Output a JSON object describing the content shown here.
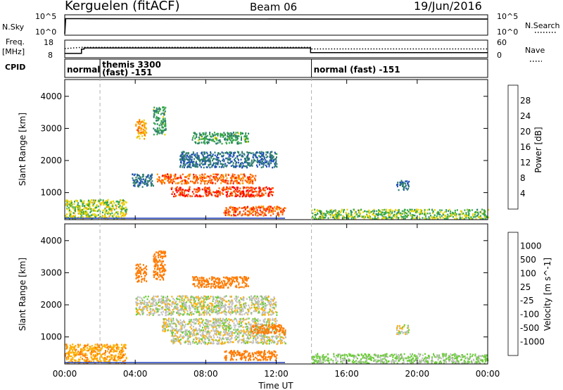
{
  "header": {
    "station": "Kerguelen (fitACF)",
    "beam": "Beam 06",
    "date": "19/Jun/2016"
  },
  "panel_labels": {
    "nsky": "N.Sky",
    "nsearch": "N.Search",
    "freq_line1": "Freq.",
    "freq_line2": "[MHz]",
    "nave": "Nave",
    "cpid": "CPID",
    "nsky_tick_top": "10^5",
    "nsky_tick_bot": "10^0",
    "freq_tick_top": "18",
    "freq_tick_bot": "8",
    "nave_tick_top": "60",
    "nave_tick_bot": "0"
  },
  "cpid_segments": [
    {
      "start_hr": 0.0,
      "line1": "normal",
      "line2": ""
    },
    {
      "start_hr": 2.0,
      "line1": "themis 3300",
      "line2": "(fast) -151"
    },
    {
      "start_hr": 14.0,
      "line1": "normal (fast) -151",
      "line2": ""
    }
  ],
  "colors": {
    "power": [
      "#0000ff",
      "#1f4fb4",
      "#2e7d6e",
      "#35a84a",
      "#e6d300",
      "#ff9900",
      "#ff5a00",
      "#ff0000"
    ],
    "velocity": [
      "#1f3fbf",
      "#2f6fbf",
      "#2e8b57",
      "#6ccc3a",
      "#c0c0c0",
      "#ffb000",
      "#ff7a00",
      "#ff2a00",
      "#ff0000"
    ]
  },
  "chart_data": [
    {
      "type": "line",
      "name": "N.Sky / N.Search",
      "x_unit": "hours UT",
      "ylim": [
        1,
        100000
      ],
      "log_scale": true,
      "series": [
        {
          "name": "N.Sky",
          "style": "solid",
          "x": [
            0.0,
            0.05,
            1.0,
            14.0,
            24.0
          ],
          "values": [
            1,
            20000,
            20000,
            15000,
            15000
          ]
        },
        {
          "name": "N.Search",
          "style": "dotted",
          "x": [],
          "values": []
        }
      ]
    },
    {
      "type": "line",
      "name": "Freq / Nave",
      "x_unit": "hours UT",
      "ylim": [
        8,
        18
      ],
      "series": [
        {
          "name": "Freq.",
          "style": "solid",
          "x": [
            0.0,
            0.95,
            0.95,
            1.1,
            1.1,
            13.95,
            13.95,
            24.0
          ],
          "values": [
            10.2,
            10.2,
            12.9,
            12.9,
            13.6,
            13.6,
            10.7,
            10.7
          ]
        },
        {
          "name": "Nave",
          "style": "dotted",
          "x": [
            0.0,
            1.0,
            13.95,
            14.0,
            24.0
          ],
          "values": [
            13.2,
            14.0,
            14.0,
            13.0,
            13.0
          ]
        }
      ]
    },
    {
      "type": "heatmap",
      "title": "Power",
      "ylabel": "Slant Range [km]",
      "colorbar_label": "Power [dB]",
      "colorbar_ticks": [
        "4",
        "8",
        "12",
        "16",
        "20",
        "24",
        "28"
      ],
      "clim": [
        0,
        30
      ],
      "ylim": [
        180,
        4500
      ],
      "y_ticks": [
        "1000",
        "2000",
        "3000",
        "4000"
      ],
      "regions": [
        {
          "t0": 4.0,
          "t1": 4.6,
          "r0": 2700,
          "r1": 3300,
          "level": 20
        },
        {
          "t0": 5.0,
          "t1": 5.7,
          "r0": 2800,
          "r1": 3700,
          "level": 12
        },
        {
          "t0": 3.8,
          "t1": 5.0,
          "r0": 1200,
          "r1": 1600,
          "level": 8
        },
        {
          "t0": 5.2,
          "t1": 10.8,
          "r0": 1300,
          "r1": 1600,
          "level": 24
        },
        {
          "t0": 6.0,
          "t1": 11.8,
          "r0": 900,
          "r1": 1200,
          "level": 26
        },
        {
          "t0": 9.0,
          "t1": 12.5,
          "r0": 300,
          "r1": 600,
          "level": 24
        },
        {
          "t0": 7.2,
          "t1": 10.4,
          "r0": 2550,
          "r1": 2900,
          "level": 12
        },
        {
          "t0": 6.5,
          "t1": 12.0,
          "r0": 1800,
          "r1": 2300,
          "level": 8
        },
        {
          "t0": 18.8,
          "t1": 19.5,
          "r0": 1100,
          "r1": 1400,
          "level": 8
        },
        {
          "t0": 0.0,
          "t1": 3.5,
          "r0": 200,
          "r1": 800,
          "level": 16
        },
        {
          "t0": 14.0,
          "t1": 24.0,
          "r0": 200,
          "r1": 500,
          "level": 14
        }
      ]
    },
    {
      "type": "heatmap",
      "title": "Velocity",
      "ylabel": "Slant Range [km]",
      "colorbar_label": "Velocity [m s^-1]",
      "colorbar_ticks": [
        "1000",
        "500",
        "100",
        "25",
        "-25",
        "-100",
        "-500",
        "-1000"
      ],
      "ylim": [
        180,
        4500
      ],
      "y_ticks": [
        "1000",
        "2000",
        "3000",
        "4000"
      ],
      "regions": [
        {
          "t0": 4.0,
          "t1": 4.6,
          "r0": 2700,
          "r1": 3300,
          "level": -300
        },
        {
          "t0": 5.0,
          "t1": 5.7,
          "r0": 2800,
          "r1": 3700,
          "level": -200
        },
        {
          "t0": 4.0,
          "t1": 12.0,
          "r0": 1700,
          "r1": 2300,
          "level": 0
        },
        {
          "t0": 5.5,
          "t1": 12.0,
          "r0": 1200,
          "r1": 1600,
          "level": 0
        },
        {
          "t0": 6.0,
          "t1": 12.5,
          "r0": 800,
          "r1": 1200,
          "level": 0
        },
        {
          "t0": 10.5,
          "t1": 12.5,
          "r0": 1100,
          "r1": 1400,
          "level": -150
        },
        {
          "t0": 9.0,
          "t1": 12.0,
          "r0": 300,
          "r1": 600,
          "level": -150
        },
        {
          "t0": 7.2,
          "t1": 10.4,
          "r0": 2550,
          "r1": 2900,
          "level": -150
        },
        {
          "t0": 18.8,
          "t1": 19.5,
          "r0": 1100,
          "r1": 1400,
          "level": 0
        },
        {
          "t0": 0.0,
          "t1": 3.5,
          "r0": 200,
          "r1": 800,
          "level": -80
        },
        {
          "t0": 14.0,
          "t1": 24.0,
          "r0": 200,
          "r1": 500,
          "level": 40
        }
      ]
    }
  ],
  "x_axis": {
    "label": "Time UT",
    "tick_hours": [
      0,
      4,
      8,
      12,
      16,
      20,
      24
    ],
    "tick_labels": [
      "00:00",
      "04:00",
      "08:00",
      "12:00",
      "16:00",
      "20:00",
      "00:00"
    ],
    "dashed_hours": [
      2,
      14
    ]
  }
}
